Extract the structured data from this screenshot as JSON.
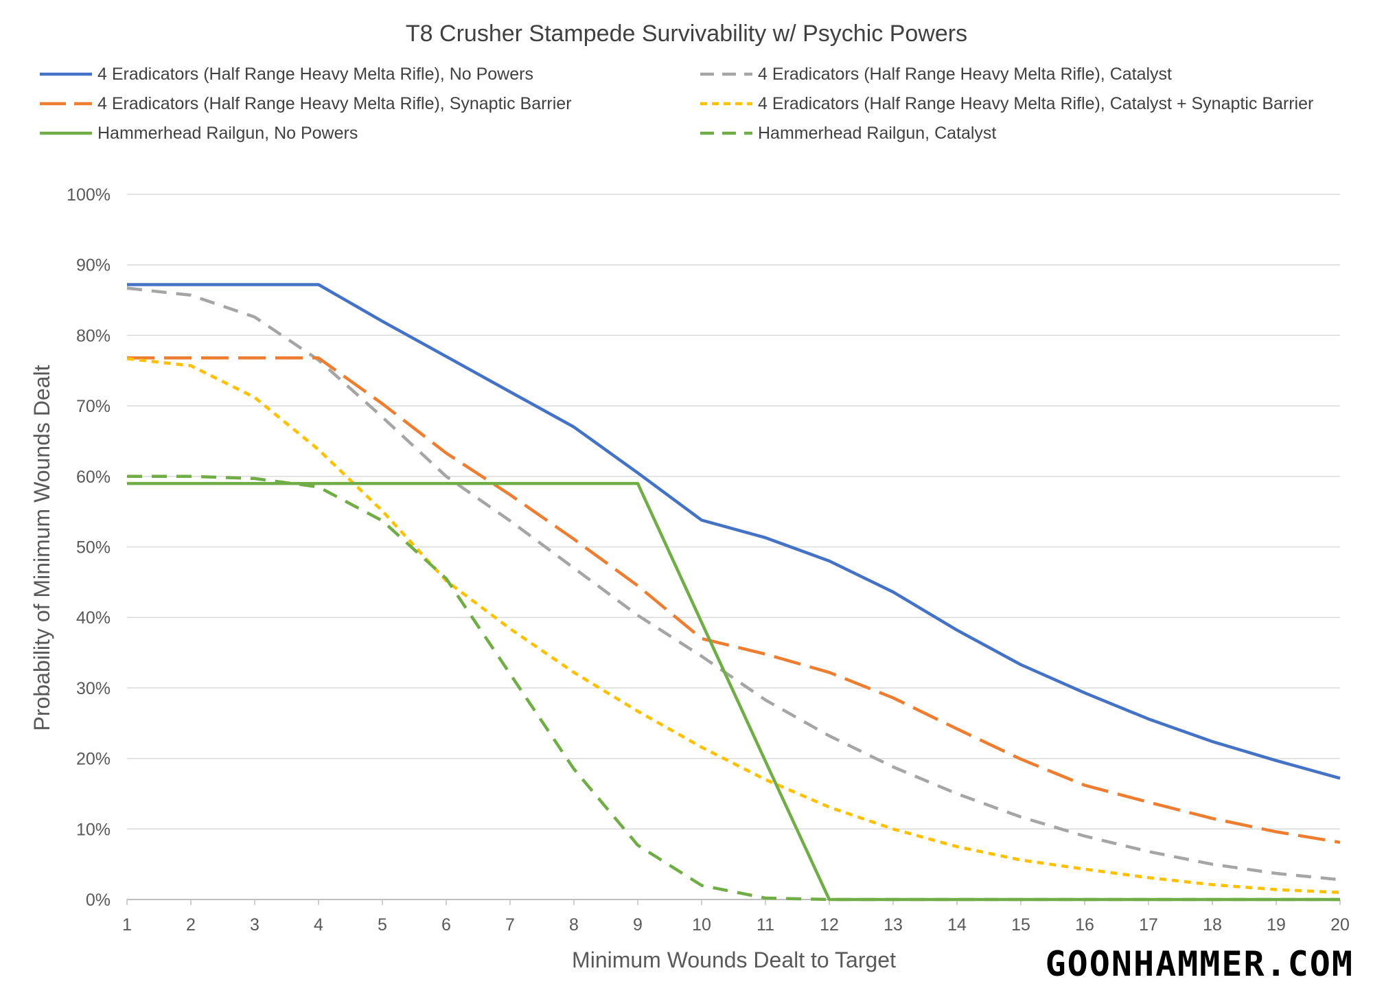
{
  "chart_data": {
    "type": "line",
    "title": "T8 Crusher Stampede Survivability w/ Psychic Powers",
    "xlabel": "Minimum Wounds Dealt to Target",
    "ylabel": "Probability of Minimum Wounds Dealt",
    "x": [
      1,
      2,
      3,
      4,
      5,
      6,
      7,
      8,
      9,
      10,
      11,
      12,
      13,
      14,
      15,
      16,
      17,
      18,
      19,
      20
    ],
    "ylim": [
      0,
      1
    ],
    "yticks": [
      0,
      0.1,
      0.2,
      0.3,
      0.4,
      0.5,
      0.6,
      0.7,
      0.8,
      0.9,
      1.0
    ],
    "ytick_labels": [
      "0%",
      "10%",
      "20%",
      "30%",
      "40%",
      "50%",
      "60%",
      "70%",
      "80%",
      "90%",
      "100%"
    ],
    "grid": true,
    "legend_position": "top",
    "series": [
      {
        "name": "4 Eradicators (Half Range Heavy Melta Rifle), No Powers",
        "color": "#4472c4",
        "style": "solid",
        "values": [
          0.872,
          0.872,
          0.872,
          0.872,
          0.82,
          0.77,
          0.72,
          0.67,
          0.605,
          0.538,
          0.513,
          0.48,
          0.436,
          0.382,
          0.333,
          0.293,
          0.256,
          0.224,
          0.197,
          0.172
        ]
      },
      {
        "name": "4 Eradicators (Half Range Heavy Melta Rifle), Catalyst",
        "color": "#a5a5a5",
        "style": "dash",
        "values": [
          0.867,
          0.857,
          0.826,
          0.765,
          0.684,
          0.6,
          0.537,
          0.47,
          0.403,
          0.345,
          0.283,
          0.232,
          0.188,
          0.15,
          0.117,
          0.09,
          0.068,
          0.05,
          0.037,
          0.028
        ]
      },
      {
        "name": "4 Eradicators (Half Range Heavy Melta Rifle), Synaptic Barrier",
        "color": "#ed7d31",
        "style": "longdash",
        "values": [
          0.768,
          0.768,
          0.768,
          0.768,
          0.703,
          0.633,
          0.574,
          0.511,
          0.445,
          0.37,
          0.348,
          0.322,
          0.286,
          0.242,
          0.199,
          0.162,
          0.138,
          0.115,
          0.096,
          0.081
        ]
      },
      {
        "name": "4 Eradicators (Half Range Heavy Melta Rifle), Catalyst + Synaptic Barrier",
        "color": "#ffc000",
        "style": "shortdash",
        "values": [
          0.767,
          0.757,
          0.712,
          0.638,
          0.551,
          0.452,
          0.384,
          0.322,
          0.267,
          0.216,
          0.17,
          0.131,
          0.1,
          0.075,
          0.056,
          0.043,
          0.031,
          0.021,
          0.014,
          0.01
        ]
      },
      {
        "name": "Hammerhead Railgun, No Powers",
        "color": "#70ad47",
        "style": "solid",
        "values": [
          0.59,
          0.59,
          0.59,
          0.59,
          0.59,
          0.59,
          0.59,
          0.59,
          0.59,
          0.393,
          0.196,
          0.0,
          0.0,
          0.0,
          0.0,
          0.0,
          0.0,
          0.0,
          0.0,
          0.0
        ]
      },
      {
        "name": "Hammerhead Railgun, Catalyst",
        "color": "#70ad47",
        "style": "dash",
        "values": [
          0.6,
          0.6,
          0.597,
          0.585,
          0.537,
          0.455,
          0.32,
          0.185,
          0.077,
          0.02,
          0.002,
          0.0,
          0.0,
          0.0,
          0.0,
          0.0,
          0.0,
          0.0,
          0.0,
          0.0
        ]
      }
    ]
  },
  "watermark": "GOONHAMMER.COM"
}
